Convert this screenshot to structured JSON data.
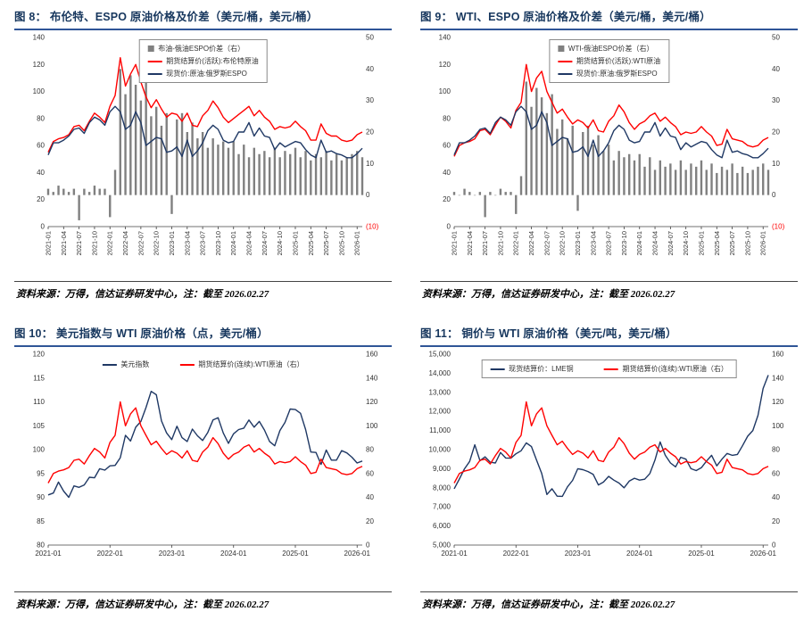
{
  "theme": {
    "title_color": "#17375e",
    "rule_color": "#2f5597",
    "axis_text": "#333333",
    "red": "#ff0000",
    "navy": "#1f3864",
    "gray_bar": "#808080",
    "legend_border": "#8a8a8a",
    "negative_tick_color": "#ff0000"
  },
  "chart_data": [
    {
      "id": "fig8",
      "heading": "图 8：  布伦特、ESPO 原油价格及价差（美元/桶，美元/桶）",
      "type": "line+bar",
      "source": "资料来源：万得，信达证券研发中心，注：截至 2026.02.27",
      "x_monthly_start": "2021-01",
      "x_ticks": [
        "2021-01",
        "2021-04",
        "2021-07",
        "2021-10",
        "2022-01",
        "2022-04",
        "2022-07",
        "2022-10",
        "2023-01",
        "2023-04",
        "2023-07",
        "2023-10",
        "2024-01",
        "2024-04",
        "2024-07",
        "2024-10",
        "2025-01",
        "2025-04",
        "2025-07",
        "2025-10",
        "2026-01"
      ],
      "x_tick_every": 3,
      "x_tick_rotate": true,
      "left_axis": {
        "min": 0,
        "max": 140,
        "step": 20,
        "comma": false
      },
      "right_axis": {
        "min": -10,
        "max": 50,
        "step": 10,
        "comma": false,
        "neg_paren": true
      },
      "legend": {
        "box": true,
        "layout": "vertical"
      },
      "series": [
        {
          "name": "布油-俄油ESPO价差（右）",
          "type": "bar",
          "axis": "right",
          "color": "#808080",
          "values": [
            2,
            1,
            3,
            2,
            1,
            2,
            -8,
            2,
            1,
            3,
            2,
            2,
            -7,
            8,
            40,
            32,
            38,
            35,
            30,
            36,
            25,
            28,
            22,
            26,
            -6,
            24,
            26,
            20,
            23,
            18,
            20,
            15,
            18,
            16,
            17,
            15,
            17,
            13,
            16,
            12,
            15,
            13,
            14,
            12,
            15,
            12,
            14,
            13,
            15,
            12,
            14,
            11,
            13,
            12,
            14,
            11,
            13,
            11,
            12,
            13,
            14,
            12
          ]
        },
        {
          "name": "期货结算价(活跃):布伦特原油",
          "type": "line",
          "axis": "left",
          "color": "#ff0000",
          "values": [
            55,
            63,
            65,
            66,
            68,
            74,
            75,
            71,
            78,
            84,
            81,
            77,
            89,
            97,
            125,
            104,
            113,
            120,
            107,
            96,
            88,
            94,
            87,
            81,
            84,
            83,
            78,
            84,
            75,
            74,
            82,
            86,
            93,
            88,
            81,
            77,
            80,
            83,
            86,
            89,
            82,
            86,
            81,
            78,
            72,
            74,
            73,
            74,
            78,
            74,
            71,
            64,
            64,
            76,
            69,
            67,
            67,
            64,
            63,
            64,
            68,
            70
          ]
        },
        {
          "name": "现货价:原油:俄罗斯ESPO",
          "type": "line",
          "axis": "left",
          "color": "#1f3864",
          "values": [
            53,
            62,
            62,
            64,
            67,
            72,
            73,
            69,
            77,
            81,
            79,
            75,
            85,
            89,
            85,
            72,
            75,
            85,
            77,
            60,
            63,
            66,
            65,
            55,
            56,
            59,
            52,
            64,
            52,
            56,
            62,
            71,
            75,
            72,
            64,
            62,
            63,
            70,
            70,
            77,
            67,
            73,
            67,
            66,
            57,
            62,
            59,
            61,
            63,
            62,
            57,
            53,
            51,
            64,
            55,
            56,
            54,
            53,
            51,
            51,
            54,
            58
          ]
        }
      ]
    },
    {
      "id": "fig9",
      "heading": "图 9：  WTI、ESPO 原油价格及价差（美元/桶，美元/桶）",
      "type": "line+bar",
      "source": "资料来源：万得，信达证券研发中心，注：截至 2026.02.27",
      "x_monthly_start": "2021-01",
      "x_ticks": [
        "2021-01",
        "2021-04",
        "2021-07",
        "2021-10",
        "2022-01",
        "2022-04",
        "2022-07",
        "2022-10",
        "2023-01",
        "2023-04",
        "2023-07",
        "2023-10",
        "2024-01",
        "2024-04",
        "2024-07",
        "2024-10",
        "2025-01",
        "2025-04",
        "2025-07",
        "2025-10",
        "2026-01"
      ],
      "x_tick_every": 3,
      "x_tick_rotate": true,
      "left_axis": {
        "min": 0,
        "max": 140,
        "step": 20,
        "comma": false
      },
      "right_axis": {
        "min": -10,
        "max": 50,
        "step": 10,
        "comma": false,
        "neg_paren": true
      },
      "legend": {
        "box": true,
        "layout": "vertical"
      },
      "series": [
        {
          "name": "WTI-俄油ESPO价差（右）",
          "type": "bar",
          "axis": "right",
          "color": "#808080",
          "values": [
            1,
            0,
            2,
            1,
            0,
            1,
            -7,
            1,
            0,
            2,
            1,
            1,
            -6,
            6,
            36,
            28,
            34,
            31,
            26,
            32,
            21,
            24,
            18,
            22,
            -5,
            20,
            22,
            16,
            19,
            14,
            16,
            11,
            14,
            12,
            13,
            11,
            13,
            9,
            12,
            8,
            11,
            9,
            10,
            8,
            11,
            8,
            10,
            9,
            11,
            8,
            10,
            7,
            9,
            8,
            10,
            7,
            9,
            7,
            8,
            9,
            10,
            8
          ]
        },
        {
          "name": "期货结算价(活跃):WTI原油",
          "type": "line",
          "axis": "left",
          "color": "#ff0000",
          "values": [
            52,
            60,
            62,
            63,
            65,
            71,
            72,
            68,
            75,
            81,
            78,
            73,
            86,
            92,
            120,
            100,
            110,
            115,
            100,
            92,
            84,
            87,
            81,
            76,
            79,
            77,
            73,
            79,
            71,
            70,
            78,
            82,
            90,
            85,
            77,
            72,
            76,
            78,
            82,
            84,
            78,
            81,
            77,
            74,
            68,
            70,
            69,
            70,
            74,
            70,
            67,
            60,
            61,
            72,
            65,
            64,
            63,
            60,
            59,
            60,
            64,
            66
          ]
        },
        {
          "name": "现货价:原油:俄罗斯ESPO",
          "type": "line",
          "axis": "left",
          "color": "#1f3864",
          "values": [
            53,
            62,
            62,
            64,
            67,
            72,
            73,
            69,
            77,
            81,
            79,
            75,
            85,
            89,
            85,
            72,
            75,
            85,
            77,
            60,
            63,
            66,
            65,
            55,
            56,
            59,
            52,
            64,
            52,
            56,
            62,
            71,
            75,
            72,
            64,
            62,
            63,
            70,
            70,
            77,
            67,
            73,
            67,
            66,
            57,
            62,
            59,
            61,
            63,
            62,
            57,
            53,
            51,
            64,
            55,
            56,
            54,
            53,
            51,
            51,
            54,
            58
          ]
        }
      ]
    },
    {
      "id": "fig10",
      "heading": "图 10：  美元指数与 WTI 原油价格（点，美元/桶）",
      "type": "line",
      "source": "资料来源：万得，信达证券研发中心，注：截至 2026.02.27",
      "x_monthly_start": "2021-01",
      "x_ticks": [
        "2021-01",
        "2022-01",
        "2023-01",
        "2024-01",
        "2025-01",
        "2026-01"
      ],
      "x_tick_every": 12,
      "x_tick_rotate": false,
      "left_axis": {
        "min": 80,
        "max": 120,
        "step": 5,
        "comma": false
      },
      "right_axis": {
        "min": 0,
        "max": 160,
        "step": 20,
        "comma": false,
        "neg_paren": false
      },
      "legend": {
        "box": false,
        "layout": "horizontal"
      },
      "series": [
        {
          "name": "美元指数",
          "type": "line",
          "axis": "left",
          "color": "#1f3864",
          "values": [
            90.5,
            90.9,
            93.2,
            91.3,
            90.0,
            92.4,
            92.1,
            92.6,
            94.2,
            94.1,
            96.0,
            95.7,
            96.6,
            96.7,
            98.3,
            103.0,
            101.8,
            104.7,
            105.9,
            108.8,
            112.2,
            111.5,
            106.0,
            103.5,
            102.1,
            104.9,
            102.5,
            101.7,
            104.3,
            102.9,
            101.9,
            103.6,
            106.2,
            106.7,
            103.5,
            101.3,
            103.3,
            104.2,
            104.5,
            106.2,
            104.7,
            105.9,
            104.1,
            101.7,
            100.8,
            104.0,
            105.7,
            108.5,
            108.4,
            107.6,
            104.2,
            99.5,
            99.4,
            96.9,
            99.9,
            97.8,
            97.8,
            99.8,
            99.3,
            98.4,
            97.2,
            97.6
          ]
        },
        {
          "name": "期货结算价(连续):WTI原油（右）",
          "type": "line",
          "axis": "right",
          "color": "#ff0000",
          "values": [
            52,
            60,
            62,
            63,
            65,
            71,
            72,
            68,
            75,
            81,
            78,
            73,
            86,
            92,
            120,
            100,
            110,
            115,
            100,
            92,
            84,
            87,
            81,
            76,
            79,
            77,
            73,
            79,
            71,
            70,
            78,
            82,
            90,
            85,
            77,
            72,
            76,
            78,
            82,
            84,
            78,
            81,
            77,
            74,
            68,
            70,
            69,
            70,
            74,
            70,
            67,
            60,
            61,
            72,
            65,
            64,
            63,
            60,
            59,
            60,
            64,
            66
          ]
        }
      ]
    },
    {
      "id": "fig11",
      "heading": "图 11：  铜价与 WTI 原油价格（美元/吨，美元/桶）",
      "type": "line",
      "source": "资料来源：万得，信达证券研发中心，注：截至 2026.02.27",
      "x_monthly_start": "2021-01",
      "x_ticks": [
        "2021-01",
        "2022-01",
        "2023-01",
        "2024-01",
        "2025-01",
        "2026-01"
      ],
      "x_tick_every": 12,
      "x_tick_rotate": false,
      "left_axis": {
        "min": 5000,
        "max": 15000,
        "step": 1000,
        "comma": true
      },
      "right_axis": {
        "min": 0,
        "max": 160,
        "step": 20,
        "comma": false,
        "neg_paren": false
      },
      "legend": {
        "box": true,
        "layout": "horizontal"
      },
      "series": [
        {
          "name": "现货结算价：LME铜",
          "type": "line",
          "axis": "left",
          "color": "#1f3864",
          "values": [
            7950,
            8460,
            8990,
            9380,
            10250,
            9420,
            9620,
            9340,
            9300,
            9850,
            9560,
            9550,
            9780,
            9940,
            10350,
            10160,
            9450,
            8750,
            7650,
            7950,
            7560,
            7550,
            8050,
            8390,
            9000,
            8950,
            8850,
            8700,
            8150,
            8300,
            8600,
            8400,
            8250,
            8000,
            8350,
            8500,
            8400,
            8450,
            8750,
            9450,
            10400,
            9700,
            9300,
            9100,
            9600,
            9500,
            9000,
            8900,
            9050,
            9400,
            9700,
            9150,
            9500,
            9800,
            9700,
            9750,
            10200,
            10700,
            11000,
            11800,
            13200,
            13900
          ]
        },
        {
          "name": "期货结算价(连续):WTI原油（右）",
          "type": "line",
          "axis": "right",
          "color": "#ff0000",
          "values": [
            52,
            60,
            62,
            63,
            65,
            71,
            72,
            68,
            75,
            81,
            78,
            73,
            86,
            92,
            120,
            100,
            110,
            115,
            100,
            92,
            84,
            87,
            81,
            76,
            79,
            77,
            73,
            79,
            71,
            70,
            78,
            82,
            90,
            85,
            77,
            72,
            76,
            78,
            82,
            84,
            78,
            81,
            77,
            74,
            68,
            70,
            69,
            70,
            74,
            70,
            67,
            60,
            61,
            72,
            65,
            64,
            63,
            60,
            59,
            60,
            64,
            66
          ]
        }
      ]
    }
  ]
}
